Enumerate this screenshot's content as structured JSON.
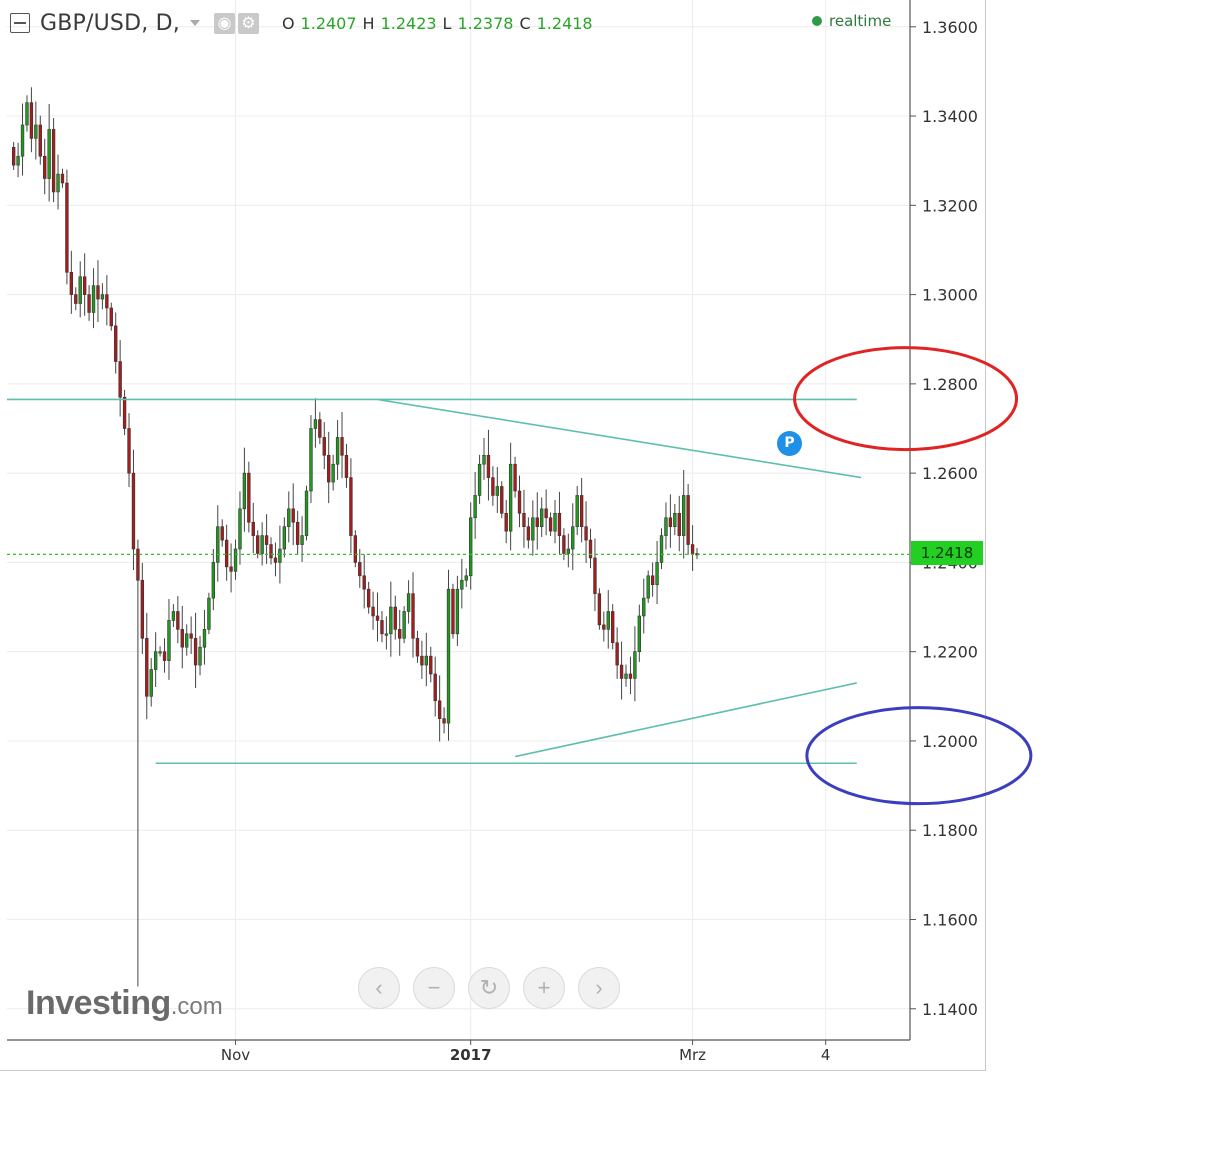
{
  "header": {
    "symbol": "GBP/USD, D,",
    "ohlc": [
      {
        "key": "O",
        "value": "1.2407"
      },
      {
        "key": "H",
        "value": "1.2423"
      },
      {
        "key": "L",
        "value": "1.2378"
      },
      {
        "key": "C",
        "value": "1.2418"
      }
    ],
    "realtime_label": "realtime"
  },
  "branding": {
    "logo_main": "Investing",
    "logo_suffix": ".com"
  },
  "current_price_label": "1.2418",
  "marker_label": "P",
  "nav_icons": [
    "chevron-left-icon",
    "minus-icon",
    "reset-icon",
    "plus-icon",
    "chevron-right-icon"
  ],
  "colors": {
    "up": "#1f9a1f",
    "down": "#a81c1c",
    "trendline": "#5fbfae",
    "price_line": "#2bc42b",
    "red_ellipse": "#e02323",
    "blue_ellipse": "#3b3fbf"
  },
  "chart_data": {
    "type": "candlestick",
    "title": "GBP/USD, D,",
    "y_ticks": [
      "1.3600",
      "1.3400",
      "1.3200",
      "1.3000",
      "1.2800",
      "1.2600",
      "1.2400",
      "1.2200",
      "1.2000",
      "1.1800",
      "1.1600",
      "1.1400"
    ],
    "ylim": [
      1.133,
      1.366
    ],
    "x_ticks": [
      {
        "label": "Nov",
        "bar": 50
      },
      {
        "label": "2017",
        "bar": 103
      },
      {
        "label": "Mrz",
        "bar": 153
      },
      {
        "label": "4",
        "bar": 183
      }
    ],
    "x_range": [
      -1.5,
      202
    ],
    "last_close": 1.2418,
    "closes": [
      1.329,
      1.331,
      1.338,
      1.343,
      1.335,
      1.338,
      1.331,
      1.326,
      1.337,
      1.323,
      1.327,
      1.325,
      1.305,
      1.3,
      1.298,
      1.304,
      1.3,
      1.296,
      1.302,
      1.299,
      1.3,
      1.297,
      1.293,
      1.285,
      1.277,
      1.27,
      1.26,
      1.243,
      1.236,
      1.223,
      1.21,
      1.216,
      1.22,
      1.22,
      1.218,
      1.227,
      1.229,
      1.225,
      1.221,
      1.224,
      1.223,
      1.217,
      1.221,
      1.225,
      1.232,
      1.24,
      1.248,
      1.245,
      1.239,
      1.238,
      1.243,
      1.252,
      1.26,
      1.249,
      1.246,
      1.242,
      1.246,
      1.244,
      1.241,
      1.24,
      1.243,
      1.248,
      1.252,
      1.249,
      1.244,
      1.246,
      1.256,
      1.27,
      1.272,
      1.268,
      1.264,
      1.258,
      1.262,
      1.268,
      1.264,
      1.259,
      1.246,
      1.24,
      1.237,
      1.234,
      1.23,
      1.228,
      1.227,
      1.224,
      1.224,
      1.23,
      1.225,
      1.223,
      1.229,
      1.233,
      1.223,
      1.219,
      1.217,
      1.219,
      1.215,
      1.209,
      1.205,
      1.204,
      1.234,
      1.224,
      1.234,
      1.236,
      1.237,
      1.25,
      1.255,
      1.262,
      1.264,
      1.259,
      1.255,
      1.257,
      1.251,
      1.247,
      1.262,
      1.256,
      1.251,
      1.248,
      1.245,
      1.25,
      1.248,
      1.252,
      1.25,
      1.247,
      1.251,
      1.246,
      1.242,
      1.243,
      1.248,
      1.255,
      1.248,
      1.245,
      1.241,
      1.233,
      1.226,
      1.225,
      1.229,
      1.222,
      1.217,
      1.214,
      1.215,
      1.214,
      1.22,
      1.228,
      1.232,
      1.237,
      1.235,
      1.24,
      1.246,
      1.25,
      1.248,
      1.251,
      1.246,
      1.255,
      1.244,
      1.242,
      1.2418
    ],
    "annotations": [
      {
        "type": "hline",
        "y": 1.2765,
        "x0": -1.5,
        "x1": 190
      },
      {
        "type": "trend",
        "x0": 82,
        "y0": 1.2765,
        "x1": 191,
        "y1": 1.259
      },
      {
        "type": "trend",
        "x0": 113,
        "y0": 1.1965,
        "x1": 190,
        "y1": 1.213
      },
      {
        "type": "hline",
        "y": 1.195,
        "x0": 32,
        "x1": 190
      },
      {
        "type": "price_line",
        "y": 1.2418
      },
      {
        "type": "ellipse",
        "color": "red",
        "y": 1.2767,
        "x": 201,
        "label": ""
      },
      {
        "type": "ellipse",
        "color": "blue",
        "y": 1.1967,
        "x": 204,
        "label": ""
      }
    ]
  }
}
